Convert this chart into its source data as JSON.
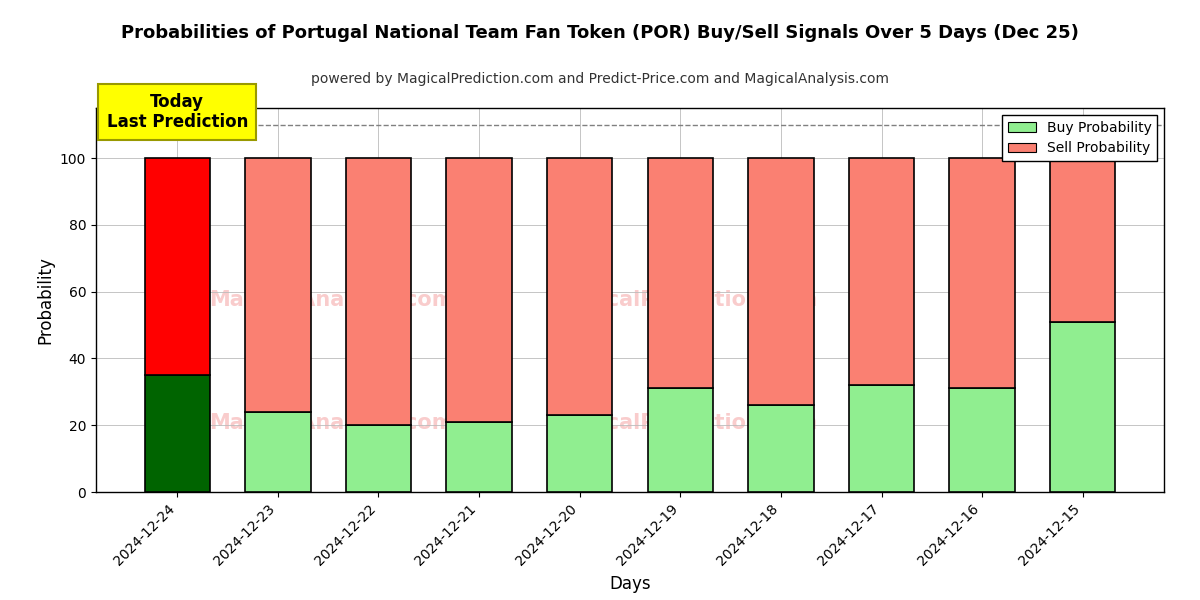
{
  "title": "Probabilities of Portugal National Team Fan Token (POR) Buy/Sell Signals Over 5 Days (Dec 25)",
  "subtitle": "powered by MagicalPrediction.com and Predict-Price.com and MagicalAnalysis.com",
  "xlabel": "Days",
  "ylabel": "Probability",
  "categories": [
    "2024-12-24",
    "2024-12-23",
    "2024-12-22",
    "2024-12-21",
    "2024-12-20",
    "2024-12-19",
    "2024-12-18",
    "2024-12-17",
    "2024-12-16",
    "2024-12-15"
  ],
  "buy_values": [
    35,
    24,
    20,
    21,
    23,
    31,
    26,
    32,
    31,
    51
  ],
  "sell_values": [
    65,
    76,
    80,
    79,
    77,
    69,
    74,
    68,
    69,
    49
  ],
  "today_buy_color": "#006400",
  "today_sell_color": "#ff0000",
  "buy_color": "#90EE90",
  "sell_color": "#FA8072",
  "today_label_bg": "#ffff00",
  "today_label_text": "Today\nLast Prediction",
  "dashed_line_y": 110,
  "ylim": [
    0,
    115
  ],
  "yticks": [
    0,
    20,
    40,
    60,
    80,
    100
  ],
  "bar_edge_color": "#000000",
  "bar_width": 0.65,
  "legend_buy": "Buy Probability",
  "legend_sell": "Sell Probability",
  "background_color": "#ffffff",
  "grid_color": "#bbbbbb",
  "title_fontsize": 13,
  "subtitle_fontsize": 10
}
